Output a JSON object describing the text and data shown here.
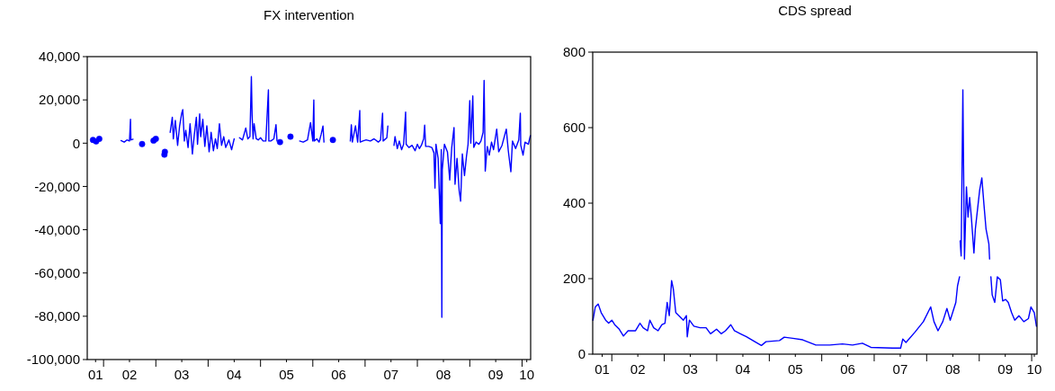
{
  "chart_data": [
    {
      "type": "line",
      "title": "FX intervention",
      "xlim": [
        "2001-09-09",
        "2010-03-02"
      ],
      "ylim": [
        -100000,
        40000
      ],
      "yticks": [
        {
          "value": 40000,
          "label": "40,000"
        },
        {
          "value": 20000,
          "label": "20,000"
        },
        0,
        {
          "value": -20000,
          "label": "-20,000"
        },
        {
          "value": -40000,
          "label": "-40,000"
        },
        {
          "value": -60000,
          "label": "-60,000"
        },
        {
          "value": -80000,
          "label": "-80,000"
        },
        {
          "value": -100000,
          "label": "-100,000"
        }
      ],
      "xticks": [
        {
          "value": "2001-11-06",
          "label": "01"
        },
        {
          "value": "2002-01-01",
          "label": null
        },
        {
          "value": "2002-07-01",
          "label": "02"
        },
        {
          "value": "2003-01-01",
          "label": null
        },
        {
          "value": "2003-07-01",
          "label": "03"
        },
        {
          "value": "2004-01-01",
          "label": null
        },
        {
          "value": "2004-07-01",
          "label": "04"
        },
        {
          "value": "2005-01-01",
          "label": null
        },
        {
          "value": "2005-07-01",
          "label": "05"
        },
        {
          "value": "2006-01-01",
          "label": null
        },
        {
          "value": "2006-07-01",
          "label": "06"
        },
        {
          "value": "2007-01-01",
          "label": null
        },
        {
          "value": "2007-07-01",
          "label": "07"
        },
        {
          "value": "2008-01-01",
          "label": null
        },
        {
          "value": "2008-07-01",
          "label": "08"
        },
        {
          "value": "2009-01-01",
          "label": null
        },
        {
          "value": "2009-07-01",
          "label": "09"
        },
        {
          "value": "2010-01-01",
          "label": null
        },
        {
          "value": "2010-02-03",
          "label": "10"
        }
      ],
      "grid": false,
      "series": [
        {
          "color": "#0000ff",
          "x": [
            "2002-05-03",
            "2002-05-25",
            "2002-06-13",
            "2002-07-01",
            "2002-07-08",
            "2002-07-11",
            "2002-07-26",
            "2002-08-14",
            "2002-09-27",
            "2002-10-19",
            "2002-12-16",
            "2003-01-01",
            "2003-01-29",
            "2003-03-02",
            "2003-03-05",
            "2003-03-27",
            "2003-04-11",
            "2003-04-26",
            "2003-05-03",
            "2003-05-17",
            "2003-06-02",
            "2003-06-16",
            "2003-07-01",
            "2003-07-08",
            "2003-07-19",
            "2003-07-29",
            "2003-08-14",
            "2003-08-28",
            "2003-09-13",
            "2003-09-27",
            "2003-10-11",
            "2003-10-19",
            "2003-11-03",
            "2003-11-10",
            "2003-11-25",
            "2003-12-09",
            "2003-12-23",
            "2004-01-08",
            "2004-01-22",
            "2004-02-07",
            "2004-02-21",
            "2004-03-05",
            "2004-03-20",
            "2004-04-04",
            "2004-04-19",
            "2004-05-03",
            "2004-05-25",
            "2004-06-13",
            "2004-07-01",
            "2004-07-19",
            "2004-08-07",
            "2004-08-28",
            "2004-09-20",
            "2004-10-04",
            "2004-10-19",
            "2004-10-29",
            "2004-11-03",
            "2004-11-10",
            "2004-11-17",
            "2004-12-02",
            "2004-12-16",
            "2005-01-01",
            "2005-01-19",
            "2005-02-07",
            "2005-02-25",
            "2005-02-28",
            "2005-03-13",
            "2005-04-04",
            "2005-04-19",
            "2005-04-26",
            "2005-05-07",
            "2005-05-17",
            "2005-06-13",
            "2005-07-29",
            "2005-08-28",
            "2005-10-01",
            "2005-10-26",
            "2005-11-25",
            "2005-12-16",
            "2006-01-01",
            "2006-01-08",
            "2006-01-11",
            "2006-01-29",
            "2006-02-14",
            "2006-02-28",
            "2006-03-13",
            "2006-03-20",
            "2006-04-19",
            "2006-05-21",
            "2006-07-01",
            "2006-09-20",
            "2006-09-27",
            "2006-10-04",
            "2006-10-26",
            "2006-11-10",
            "2006-11-25",
            "2006-11-28",
            "2006-12-16",
            "2007-01-08",
            "2007-02-07",
            "2007-03-05",
            "2007-04-04",
            "2007-04-19",
            "2007-05-03",
            "2007-05-07",
            "2007-06-02",
            "2007-06-09",
            "2007-07-01",
            "2007-07-22",
            "2007-07-29",
            "2007-08-14",
            "2007-08-28",
            "2007-09-13",
            "2007-09-27",
            "2007-10-11",
            "2007-10-15",
            "2007-11-03",
            "2007-11-25",
            "2007-12-16",
            "2008-01-01",
            "2008-01-15",
            "2008-01-29",
            "2008-02-14",
            "2008-02-21",
            "2008-02-28",
            "2008-03-20",
            "2008-04-11",
            "2008-04-26",
            "2008-05-03",
            "2008-05-10",
            "2008-05-25",
            "2008-06-09",
            "2008-06-16",
            "2008-06-20",
            "2008-06-23",
            "2008-07-08",
            "2008-07-29",
            "2008-08-14",
            "2008-08-28",
            "2008-09-13",
            "2008-09-20",
            "2008-10-04",
            "2008-10-19",
            "2008-10-29",
            "2008-11-10",
            "2008-11-25",
            "2008-12-09",
            "2008-12-20",
            "2009-01-01",
            "2009-01-08",
            "2009-01-22",
            "2009-01-29",
            "2009-02-14",
            "2009-03-05",
            "2009-03-20",
            "2009-04-04",
            "2009-04-11",
            "2009-04-19",
            "2009-05-03",
            "2009-05-17",
            "2009-06-02",
            "2009-06-16",
            "2009-07-08",
            "2009-07-22",
            "2009-08-14",
            "2009-09-13",
            "2009-09-27",
            "2009-10-15",
            "2009-10-26",
            "2009-11-17",
            "2009-12-09",
            "2009-12-20",
            "2009-12-23",
            "2010-01-08",
            "2010-01-22",
            "2010-02-14",
            "2010-02-28"
          ],
          "values": [
            1200,
            500,
            1500,
            1000,
            11000,
            1500,
            1800,
            null,
            null,
            null,
            null,
            null,
            null,
            null,
            null,
            null,
            5000,
            12000,
            2000,
            10500,
            -1000,
            8000,
            14000,
            15500,
            1000,
            6000,
            -2000,
            9000,
            -5000,
            4000,
            12000,
            -500,
            13500,
            3000,
            11000,
            -1500,
            8000,
            -4000,
            5000,
            -3500,
            2000,
            -2500,
            9000,
            -1000,
            3000,
            -2000,
            1500,
            -3000,
            2000,
            null,
            2500,
            1500,
            7000,
            2000,
            3000,
            30800,
            13000,
            2000,
            9000,
            2000,
            1500,
            2500,
            1000,
            1000,
            24600,
            1000,
            1000,
            2000,
            8600,
            1000,
            null,
            null,
            null,
            null,
            null,
            1000,
            500,
            1500,
            9500,
            1000,
            20000,
            1000,
            2000,
            500,
            4000,
            7900,
            500,
            null,
            null,
            null,
            1000,
            8500,
            500,
            8000,
            500,
            15100,
            500,
            1000,
            1500,
            1000,
            2000,
            500,
            1500,
            13800,
            1000,
            2500,
            7900,
            null,
            -1000,
            3000,
            -2500,
            1000,
            -3000,
            -500,
            14400,
            -500,
            -2000,
            -1000,
            -3500,
            -500,
            -2500,
            -1000,
            2000,
            8300,
            -1500,
            -1500,
            -2000,
            -4500,
            -20800,
            -500,
            -7000,
            -37200,
            -3000,
            -80500,
            -12200,
            -500,
            -4000,
            -17000,
            -2000,
            7200,
            -19000,
            -7000,
            -22000,
            -26800,
            -5000,
            -15000,
            -6000,
            -500,
            19700,
            0,
            21800,
            -2000,
            500,
            -500,
            1000,
            5000,
            29000,
            -12900,
            -1500,
            -5500,
            500,
            -3000,
            6500,
            -4000,
            -1000,
            6500,
            -3500,
            -13200,
            1000,
            -2500,
            1500,
            13800,
            -1000,
            -5500,
            500,
            -500,
            3500
          ]
        },
        {
          "type": "scatter",
          "color": "#0000fe",
          "marker": "circle",
          "x": [
            "2001-10-19",
            "2001-11-10",
            "2001-12-02",
            "2002-09-27",
            "2002-12-16",
            "2003-01-01",
            "2003-03-02",
            "2003-03-05",
            "2005-05-17",
            "2005-07-29",
            "2006-05-21"
          ],
          "values": [
            1500,
            800,
            2000,
            -400,
            1200,
            2000,
            -5300,
            -4000,
            500,
            3000,
            1500
          ]
        }
      ]
    },
    {
      "type": "line",
      "title": "CDS spread",
      "xlim": [
        "2001-08-21",
        "2010-02-07"
      ],
      "ylim": [
        0,
        800
      ],
      "yticks": [
        0,
        200,
        400,
        600,
        800
      ],
      "xticks": [
        {
          "value": "2001-10-26",
          "label": "01"
        },
        {
          "value": "2002-01-01",
          "label": null
        },
        {
          "value": "2002-07-01",
          "label": "02"
        },
        {
          "value": "2003-01-01",
          "label": null
        },
        {
          "value": "2003-07-01",
          "label": "03"
        },
        {
          "value": "2004-01-01",
          "label": null
        },
        {
          "value": "2004-07-01",
          "label": "04"
        },
        {
          "value": "2005-01-01",
          "label": null
        },
        {
          "value": "2005-07-01",
          "label": "05"
        },
        {
          "value": "2006-01-01",
          "label": null
        },
        {
          "value": "2006-07-01",
          "label": "06"
        },
        {
          "value": "2007-01-01",
          "label": null
        },
        {
          "value": "2007-07-01",
          "label": "07"
        },
        {
          "value": "2008-01-01",
          "label": null
        },
        {
          "value": "2008-07-01",
          "label": "08"
        },
        {
          "value": "2009-01-01",
          "label": null
        },
        {
          "value": "2009-07-01",
          "label": "09"
        },
        {
          "value": "2010-01-01",
          "label": null
        },
        {
          "value": "2010-01-19",
          "label": "10"
        }
      ],
      "grid": false,
      "series": [
        {
          "color": "#0000ff",
          "x": [
            "2001-08-23",
            "2001-09-08",
            "2001-09-28",
            "2001-10-19",
            "2001-11-19",
            "2001-12-10",
            "2002-01-01",
            "2002-01-21",
            "2002-02-22",
            "2002-03-23",
            "2002-04-24",
            "2002-06-15",
            "2002-07-16",
            "2002-08-07",
            "2002-09-07",
            "2002-09-23",
            "2002-10-19",
            "2002-11-19",
            "2002-12-16",
            "2003-01-06",
            "2003-01-21",
            "2003-02-05",
            "2003-02-21",
            "2003-03-05",
            "2003-03-22",
            "2003-04-13",
            "2003-05-14",
            "2003-06-04",
            "2003-06-10",
            "2003-06-25",
            "2003-07-26",
            "2003-09-07",
            "2003-10-19",
            "2003-11-19",
            "2003-12-31",
            "2004-02-01",
            "2004-03-02",
            "2004-04-08",
            "2004-05-03",
            "2004-06-14",
            "2004-07-26",
            "2004-09-09",
            "2004-11-07",
            "2004-12-09",
            "2005-03-13",
            "2005-04-15",
            "2005-06-13",
            "2005-08-21",
            "2005-11-21",
            "2006-02-25",
            "2006-05-25",
            "2006-08-03",
            "2006-10-11",
            "2006-12-09",
            "2007-05-07",
            "2007-07-04",
            "2007-07-19",
            "2007-08-10",
            "2007-10-11",
            "2007-12-09",
            "2008-01-29",
            "2008-02-21",
            "2008-03-20",
            "2008-04-22",
            "2008-05-21",
            "2008-06-13",
            "2008-07-22",
            "2008-08-03",
            "2008-08-17",
            "2008-08-19",
            "2008-08-21",
            "2008-08-28",
            "2008-09-09",
            "2008-09-20",
            "2008-10-04",
            "2008-10-15",
            "2008-10-26",
            "2008-11-07",
            "2008-11-25",
            "2008-12-05",
            "2009-01-04",
            "2009-01-19",
            "2009-02-03",
            "2009-02-17",
            "2009-03-09",
            "2009-03-14",
            "2009-03-18",
            "2009-03-23",
            "2009-04-01",
            "2009-04-19",
            "2009-05-07",
            "2009-05-28",
            "2009-06-13",
            "2009-07-04",
            "2009-07-22",
            "2009-08-14",
            "2009-09-05",
            "2009-10-04",
            "2009-11-07",
            "2009-12-09",
            "2009-12-27",
            "2010-01-19",
            "2010-02-03"
          ],
          "values": [
            90,
            125,
            133,
            110,
            90,
            82,
            90,
            78,
            66,
            48,
            62,
            62,
            82,
            70,
            62,
            90,
            70,
            62,
            78,
            82,
            137,
            102,
            195,
            173,
            110,
            102,
            90,
            102,
            46,
            90,
            74,
            70,
            70,
            54,
            66,
            54,
            62,
            78,
            62,
            54,
            46,
            36,
            23,
            33,
            36,
            45,
            42,
            38,
            24,
            24,
            27,
            24,
            29,
            18,
            16,
            16,
            40,
            31,
            58,
            86,
            125,
            86,
            62,
            86,
            121,
            90,
            137,
            181,
            205,
            null,
            300,
            260,
            700,
            252,
            443,
            363,
            415,
            363,
            268,
            332,
            435,
            467,
            395,
            332,
            292,
            252,
            null,
            205,
            157,
            137,
            205,
            197,
            141,
            145,
            137,
            110,
            90,
            102,
            86,
            94,
            125,
            110,
            74
          ]
        }
      ]
    }
  ]
}
